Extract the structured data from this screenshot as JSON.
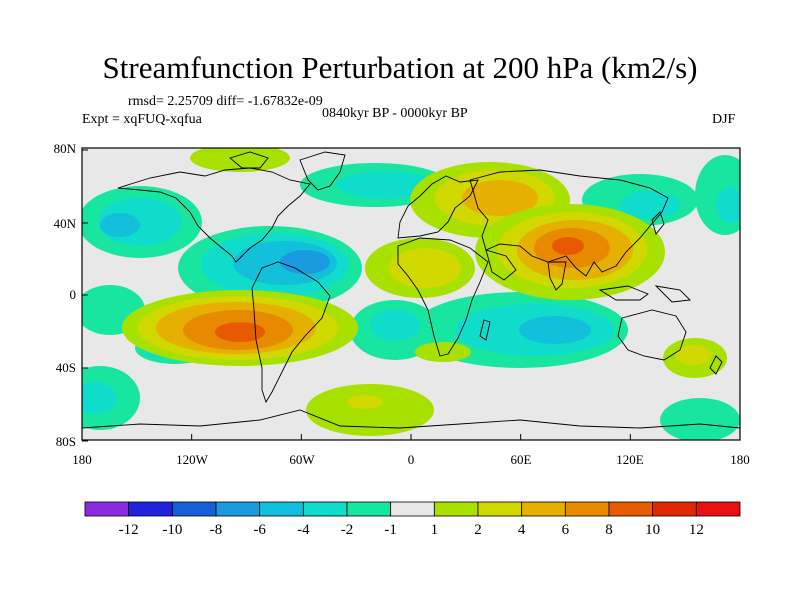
{
  "title": "Streamfunction Perturbation at 200 hPa (km2/s)",
  "stats": "rmsd= 2.25709 diff= -1.67832e-09",
  "experiment": "Expt = xqFUQ-xqfua",
  "period": "0840kyr BP - 0000kyr BP",
  "season": "DJF",
  "lat_labels": [
    "80N",
    "40N",
    "0",
    "40S",
    "80S"
  ],
  "lon_labels": [
    "180",
    "120W",
    "60W",
    "0",
    "60E",
    "120E",
    "180"
  ],
  "colorbar": {
    "labels": [
      "-12",
      "-10",
      "-8",
      "-6",
      "-4",
      "-2",
      "-1",
      "1",
      "2",
      "4",
      "6",
      "8",
      "10",
      "12"
    ],
    "colors": [
      "#8a2be2",
      "#2222dd",
      "#1560d8",
      "#1a9be0",
      "#12c0dc",
      "#10dccc",
      "#18e6a0",
      "#e8e8e8",
      "#a8e000",
      "#d0d800",
      "#e6b000",
      "#e88a00",
      "#e85a00",
      "#e02800",
      "#e81010"
    ]
  }
}
